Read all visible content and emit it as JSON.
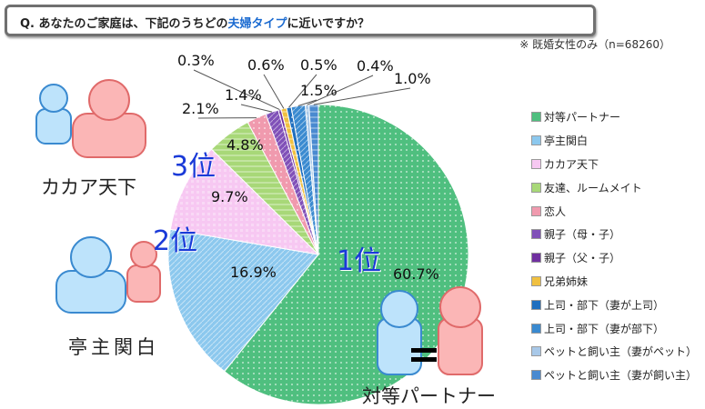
{
  "question": {
    "prefix": "Q. あなたのご家庭は、下記のうちどの",
    "highlight": "夫婦タイプ",
    "suffix": "に近いですか？"
  },
  "note": "※ 既婚女性のみ（n=68260）",
  "ranks": {
    "first": "1位",
    "second": "2位",
    "third": "3位"
  },
  "callouts": {
    "first": "対等パートナー",
    "second": "亭主関白",
    "third": "カカア天下"
  },
  "chart_data": {
    "type": "pie",
    "start": "top",
    "direction": "clockwise",
    "legend_position": "right",
    "slices": [
      {
        "label": "対等パートナー",
        "value": 60.7,
        "value_label": "60.7%",
        "color": "#4fbf7f"
      },
      {
        "label": "亭主関白",
        "value": 16.9,
        "value_label": "16.9%",
        "color": "#8cc8ee"
      },
      {
        "label": "カカア天下",
        "value": 9.7,
        "value_label": "9.7%",
        "color": "#f7c8f2"
      },
      {
        "label": "友達、ルームメイト",
        "value": 4.8,
        "value_label": "4.8%",
        "color": "#a8d878"
      },
      {
        "label": "恋人",
        "value": 2.1,
        "value_label": "2.1%",
        "color": "#f09aae"
      },
      {
        "label": "親子（母・子）",
        "value": 1.4,
        "value_label": "1.4%",
        "color": "#8050b8"
      },
      {
        "label": "親子（父・子）",
        "value": 0.3,
        "value_label": "0.3%",
        "color": "#7030a0"
      },
      {
        "label": "兄弟姉妹",
        "value": 0.6,
        "value_label": "0.6%",
        "color": "#f0c040"
      },
      {
        "label": "上司・部下（妻が上司）",
        "value": 0.5,
        "value_label": "0.5%",
        "color": "#1f6fbf"
      },
      {
        "label": "上司・部下（妻が部下）",
        "value": 1.5,
        "value_label": "1.5%",
        "color": "#3a8ad0"
      },
      {
        "label": "ペットと飼い主（妻がペット）",
        "value": 0.4,
        "value_label": "0.4%",
        "color": "#a8c8e8"
      },
      {
        "label": "ペットと飼い主（妻が飼い主）",
        "value": 1.0,
        "value_label": "1.0%",
        "color": "#4a8ad0"
      }
    ]
  }
}
